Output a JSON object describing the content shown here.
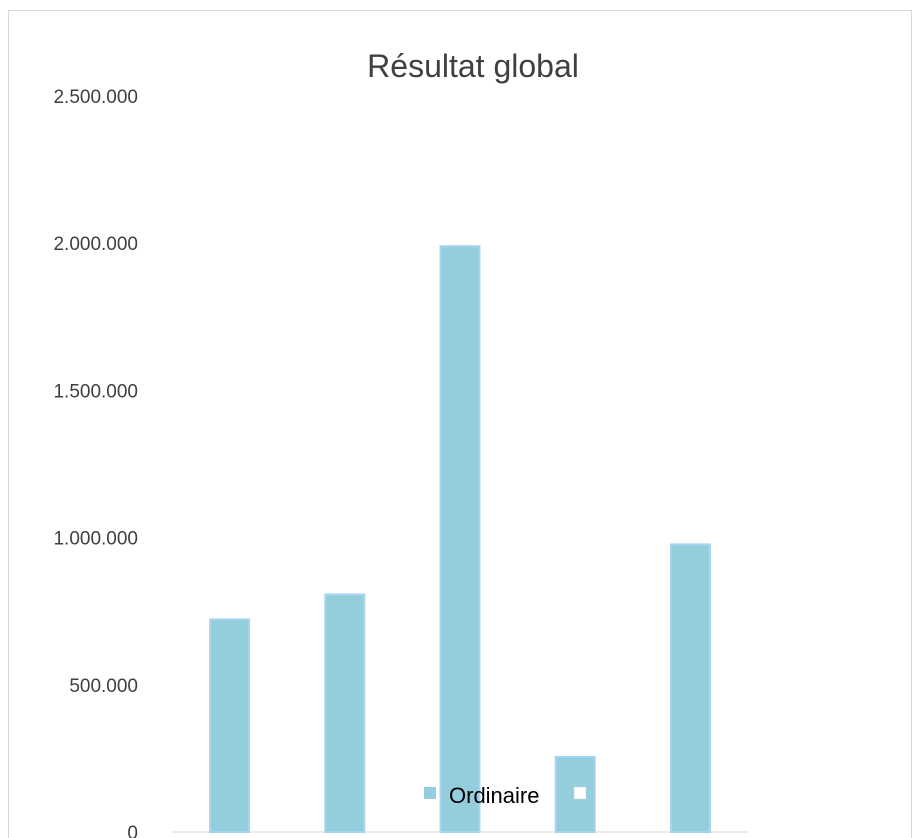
{
  "chart_data": {
    "type": "bar",
    "title": "Résultat global",
    "xlabel": "",
    "ylabel": "",
    "categories": [
      "",
      "",
      "",
      "",
      ""
    ],
    "series": [
      {
        "name": "Ordinaire",
        "color": "#94cddc",
        "values": [
          722000,
          807000,
          1990000,
          255000,
          977000
        ]
      },
      {
        "name": "",
        "color": "#ffffff",
        "values": [
          0,
          0,
          0,
          0,
          0
        ]
      }
    ],
    "ylim": [
      0,
      2500000
    ],
    "yticks": [
      "0",
      "500.000",
      "1.000.000",
      "1.500.000",
      "2.000.000",
      "2.500.000"
    ],
    "grid": false,
    "legend_position": "bottom"
  }
}
